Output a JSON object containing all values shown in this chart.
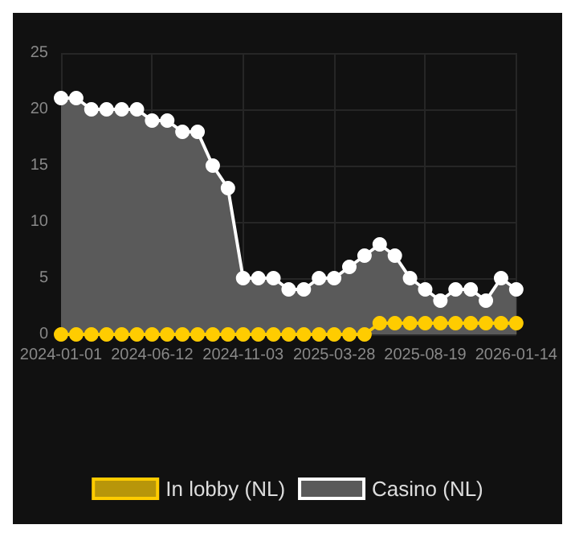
{
  "chart_data": {
    "type": "area",
    "categories": [
      "2024-01-01",
      null,
      null,
      null,
      null,
      null,
      "2024-06-12",
      null,
      null,
      null,
      null,
      null,
      "2024-11-03",
      null,
      null,
      null,
      null,
      null,
      "2025-03-28",
      null,
      null,
      null,
      null,
      null,
      "2025-08-19",
      null,
      null,
      null,
      null,
      null,
      "2026-01-14"
    ],
    "series": [
      {
        "name": "In lobby (NL)",
        "color": "#ffcc00",
        "values": [
          0,
          0,
          0,
          0,
          0,
          0,
          0,
          0,
          0,
          0,
          0,
          0,
          0,
          0,
          0,
          0,
          0,
          0,
          0,
          0,
          0,
          1,
          1,
          1,
          1,
          1,
          1,
          1,
          1,
          1,
          1
        ]
      },
      {
        "name": "Casino (NL)",
        "color": "#ffffff",
        "values": [
          21,
          21,
          20,
          20,
          20,
          20,
          19,
          19,
          18,
          18,
          15,
          13,
          5,
          5,
          5,
          4,
          4,
          5,
          5,
          6,
          7,
          8,
          7,
          5,
          4,
          3,
          4,
          4,
          3,
          5,
          4
        ]
      }
    ],
    "ylim": [
      0,
      25
    ],
    "yticks": [
      0,
      5,
      10,
      15,
      20,
      25
    ],
    "grid": true,
    "legend": "bottom",
    "marker": "circle"
  }
}
